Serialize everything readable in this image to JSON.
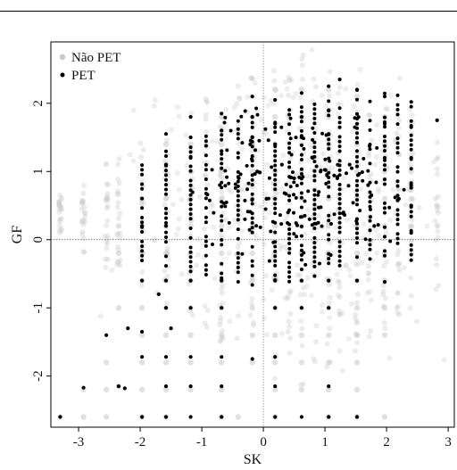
{
  "chart_data": {
    "type": "scatter",
    "title": "",
    "xlabel": "SK",
    "ylabel": "GF",
    "xlim": [
      -3.45,
      3.1
    ],
    "ylim": [
      -2.75,
      2.9
    ],
    "xticks": [
      -3,
      -2,
      -1,
      0,
      1,
      2,
      3
    ],
    "yticks": [
      -2,
      -1,
      0,
      1,
      2
    ],
    "xtick_labels": [
      "-3",
      "-2",
      "-1",
      "0",
      "1",
      "2",
      "3"
    ],
    "ytick_labels": [
      "-2",
      "-1",
      "0",
      "1",
      "2"
    ],
    "reference_lines": {
      "x": 0,
      "y": 0,
      "style": "dotted"
    },
    "grid": false,
    "legend_position": "top-left",
    "x_columns": [
      -3.3,
      -2.92,
      -2.55,
      -2.35,
      -1.97,
      -1.58,
      -1.18,
      -0.93,
      -0.68,
      -0.41,
      -0.18,
      0.19,
      0.42,
      0.62,
      0.83,
      1.06,
      1.24,
      1.52,
      1.73,
      1.97,
      2.18,
      2.4,
      2.82
    ],
    "series": [
      {
        "name": "Não PET",
        "color": "#c8c8c8",
        "style": "light-gray dots, dense cloud in the background",
        "points": [
          [
            -3.3,
            -2.6
          ],
          [
            -2.92,
            -2.6
          ],
          [
            -2.55,
            -2.6
          ],
          [
            -1.97,
            -2.6
          ],
          [
            -1.58,
            -2.6
          ],
          [
            -0.68,
            -2.6
          ],
          [
            -0.41,
            -2.6
          ],
          [
            0.19,
            -2.6
          ],
          [
            1.06,
            -2.6
          ],
          [
            1.52,
            -2.6
          ],
          [
            1.97,
            -2.6
          ],
          [
            -2.92,
            -2.2
          ],
          [
            -2.55,
            -2.2
          ],
          [
            -2.35,
            -2.15
          ],
          [
            -1.97,
            -2.2
          ],
          [
            -1.58,
            -2.2
          ],
          [
            -1.18,
            -2.2
          ],
          [
            -0.68,
            -2.2
          ],
          [
            0.19,
            -2.2
          ],
          [
            0.62,
            -2.2
          ],
          [
            1.06,
            -2.2
          ],
          [
            1.52,
            -2.2
          ],
          [
            -2.55,
            -1.8
          ],
          [
            -1.97,
            -1.8
          ],
          [
            -1.58,
            -1.8
          ],
          [
            -1.18,
            -1.8
          ],
          [
            -0.68,
            -1.8
          ],
          [
            -0.18,
            -1.8
          ],
          [
            0.19,
            -1.8
          ],
          [
            0.62,
            -1.8
          ],
          [
            1.06,
            -1.8
          ],
          [
            1.52,
            -1.8
          ],
          [
            -1.97,
            -1.4
          ],
          [
            -1.58,
            -1.4
          ],
          [
            -1.18,
            -1.4
          ],
          [
            -0.68,
            -1.4
          ],
          [
            -0.18,
            -1.4
          ],
          [
            0.19,
            -1.4
          ],
          [
            0.62,
            -1.4
          ],
          [
            1.06,
            -1.4
          ],
          [
            1.52,
            -1.4
          ],
          [
            1.97,
            -1.4
          ],
          [
            -2.35,
            -1.0
          ],
          [
            -1.97,
            -1.0
          ],
          [
            -1.58,
            -1.0
          ],
          [
            -1.18,
            -1.0
          ],
          [
            -0.68,
            -1.0
          ],
          [
            -0.18,
            -1.0
          ],
          [
            0.19,
            -1.0
          ],
          [
            0.62,
            -1.0
          ],
          [
            1.06,
            -1.0
          ],
          [
            1.52,
            -1.0
          ],
          [
            1.97,
            -1.0
          ],
          [
            -1.97,
            -0.6
          ],
          [
            -1.58,
            -0.6
          ],
          [
            -1.18,
            -0.6
          ],
          [
            -0.68,
            -0.6
          ],
          [
            -0.18,
            -0.6
          ],
          [
            0.19,
            -0.6
          ],
          [
            0.62,
            -0.6
          ],
          [
            1.06,
            -0.6
          ],
          [
            1.52,
            -0.6
          ],
          [
            1.97,
            -0.6
          ],
          [
            -2.35,
            -0.2
          ],
          [
            -1.97,
            -0.2
          ],
          [
            -1.58,
            -0.2
          ],
          [
            -1.18,
            -0.2
          ],
          [
            -0.68,
            -0.2
          ],
          [
            -0.18,
            -0.2
          ],
          [
            0.19,
            -0.2
          ],
          [
            0.62,
            -0.2
          ],
          [
            1.06,
            -0.2
          ],
          [
            1.52,
            -0.2
          ],
          [
            1.97,
            -0.2
          ],
          [
            2.4,
            -0.2
          ],
          [
            -2.35,
            0.2
          ],
          [
            -1.97,
            0.2
          ],
          [
            -1.58,
            0.2
          ],
          [
            -1.18,
            0.2
          ],
          [
            -0.68,
            0.2
          ],
          [
            -0.18,
            0.2
          ],
          [
            0.19,
            0.2
          ],
          [
            0.62,
            0.2
          ],
          [
            1.06,
            0.2
          ],
          [
            1.52,
            0.2
          ],
          [
            1.97,
            0.2
          ],
          [
            2.4,
            0.2
          ],
          [
            -1.97,
            0.6
          ],
          [
            -1.58,
            0.6
          ],
          [
            -1.18,
            0.6
          ],
          [
            -0.68,
            0.6
          ],
          [
            -0.18,
            0.6
          ],
          [
            0.19,
            0.6
          ],
          [
            0.62,
            0.6
          ],
          [
            1.06,
            0.6
          ],
          [
            1.52,
            0.6
          ],
          [
            1.97,
            0.6
          ],
          [
            2.4,
            0.6
          ],
          [
            -1.58,
            1.0
          ],
          [
            -1.18,
            1.0
          ],
          [
            -0.68,
            1.0
          ],
          [
            -0.18,
            1.0
          ],
          [
            0.19,
            1.0
          ],
          [
            0.62,
            1.0
          ],
          [
            1.06,
            1.0
          ],
          [
            1.52,
            1.0
          ],
          [
            1.97,
            1.0
          ],
          [
            2.4,
            1.0
          ],
          [
            -1.58,
            1.4
          ],
          [
            -1.18,
            1.4
          ],
          [
            -0.68,
            1.4
          ],
          [
            -0.18,
            1.4
          ],
          [
            0.19,
            1.4
          ],
          [
            0.62,
            1.4
          ],
          [
            1.06,
            1.4
          ],
          [
            1.52,
            1.4
          ],
          [
            1.97,
            1.4
          ],
          [
            -0.68,
            1.8
          ],
          [
            -0.18,
            1.8
          ],
          [
            0.19,
            1.8
          ],
          [
            0.62,
            1.8
          ],
          [
            1.06,
            1.8
          ],
          [
            1.52,
            1.8
          ],
          [
            1.97,
            1.8
          ],
          [
            0.19,
            2.2
          ],
          [
            0.62,
            2.2
          ],
          [
            1.06,
            2.2
          ],
          [
            1.52,
            2.1
          ]
        ]
      },
      {
        "name": "PET",
        "color": "#000000",
        "style": "black dots",
        "points": [
          [
            -3.3,
            -2.6
          ],
          [
            -1.97,
            -2.6
          ],
          [
            -1.58,
            -2.6
          ],
          [
            -1.18,
            -2.6
          ],
          [
            -0.68,
            -2.6
          ],
          [
            0.19,
            -2.6
          ],
          [
            0.62,
            -2.6
          ],
          [
            1.06,
            -2.6
          ],
          [
            1.52,
            -2.6
          ],
          [
            -2.92,
            -2.17
          ],
          [
            -2.35,
            -2.15
          ],
          [
            -2.25,
            -2.18
          ],
          [
            -1.58,
            -2.15
          ],
          [
            -1.18,
            -2.15
          ],
          [
            -0.68,
            -2.15
          ],
          [
            0.19,
            -2.15
          ],
          [
            1.06,
            -2.15
          ],
          [
            -2.55,
            -1.4
          ],
          [
            -2.2,
            -1.3
          ],
          [
            -1.97,
            -1.72
          ],
          [
            -1.58,
            -1.72
          ],
          [
            -1.18,
            -1.72
          ],
          [
            -0.68,
            -1.72
          ],
          [
            -0.18,
            -1.75
          ],
          [
            0.19,
            -1.72
          ],
          [
            -1.97,
            -1.35
          ],
          [
            -1.5,
            -1.3
          ],
          [
            -1.58,
            -1.0
          ],
          [
            -1.18,
            -1.0
          ],
          [
            -0.68,
            -1.0
          ],
          [
            0.19,
            -1.0
          ],
          [
            0.62,
            -1.0
          ],
          [
            1.06,
            -1.0
          ],
          [
            -1.7,
            -0.8
          ],
          [
            -1.97,
            -0.6
          ],
          [
            -1.58,
            -0.6
          ],
          [
            -1.18,
            -0.6
          ],
          [
            -0.68,
            -0.6
          ],
          [
            0.19,
            -0.6
          ],
          [
            0.62,
            -0.6
          ],
          [
            1.06,
            -0.6
          ],
          [
            1.52,
            -0.6
          ],
          [
            1.97,
            -0.62
          ],
          [
            -1.97,
            0.2
          ],
          [
            -1.58,
            0.2
          ],
          [
            -1.58,
            1.55
          ],
          [
            -1.58,
            1.1
          ],
          [
            -1.18,
            1.8
          ],
          [
            -1.18,
            1.5
          ],
          [
            -1.18,
            1.2
          ],
          [
            -0.68,
            1.85
          ],
          [
            -0.68,
            1.6
          ],
          [
            -0.68,
            1.3
          ],
          [
            -0.18,
            2.1
          ],
          [
            -0.18,
            1.8
          ],
          [
            -0.18,
            1.5
          ],
          [
            0.19,
            2.05
          ],
          [
            0.19,
            1.7
          ],
          [
            0.19,
            1.4
          ],
          [
            0.62,
            2.15
          ],
          [
            0.62,
            1.8
          ],
          [
            0.62,
            1.5
          ],
          [
            1.06,
            2.25
          ],
          [
            1.06,
            1.9
          ],
          [
            1.06,
            1.55
          ],
          [
            1.24,
            2.35
          ],
          [
            1.52,
            2.2
          ],
          [
            1.52,
            1.7
          ],
          [
            1.52,
            1.3
          ],
          [
            1.97,
            2.1
          ],
          [
            1.97,
            1.7
          ],
          [
            1.97,
            1.2
          ],
          [
            2.4,
            1.65
          ],
          [
            2.4,
            1.2
          ],
          [
            2.4,
            0.8
          ],
          [
            2.4,
            0.5
          ],
          [
            2.4,
            0.1
          ],
          [
            2.4,
            -0.3
          ],
          [
            2.82,
            1.75
          ],
          [
            -0.4,
            0.9
          ],
          [
            -0.3,
            0.3
          ],
          [
            -0.1,
            1.0
          ],
          [
            0.05,
            0.6
          ],
          [
            0.3,
            1.1
          ],
          [
            0.4,
            0.4
          ],
          [
            0.5,
            0.9
          ],
          [
            0.75,
            0.3
          ],
          [
            0.8,
            1.2
          ],
          [
            0.9,
            0.7
          ],
          [
            1.2,
            0.9
          ],
          [
            1.3,
            0.4
          ],
          [
            1.4,
            1.1
          ],
          [
            1.7,
            0.8
          ],
          [
            1.8,
            0.2
          ],
          [
            2.2,
            0.6
          ]
        ]
      }
    ]
  }
}
